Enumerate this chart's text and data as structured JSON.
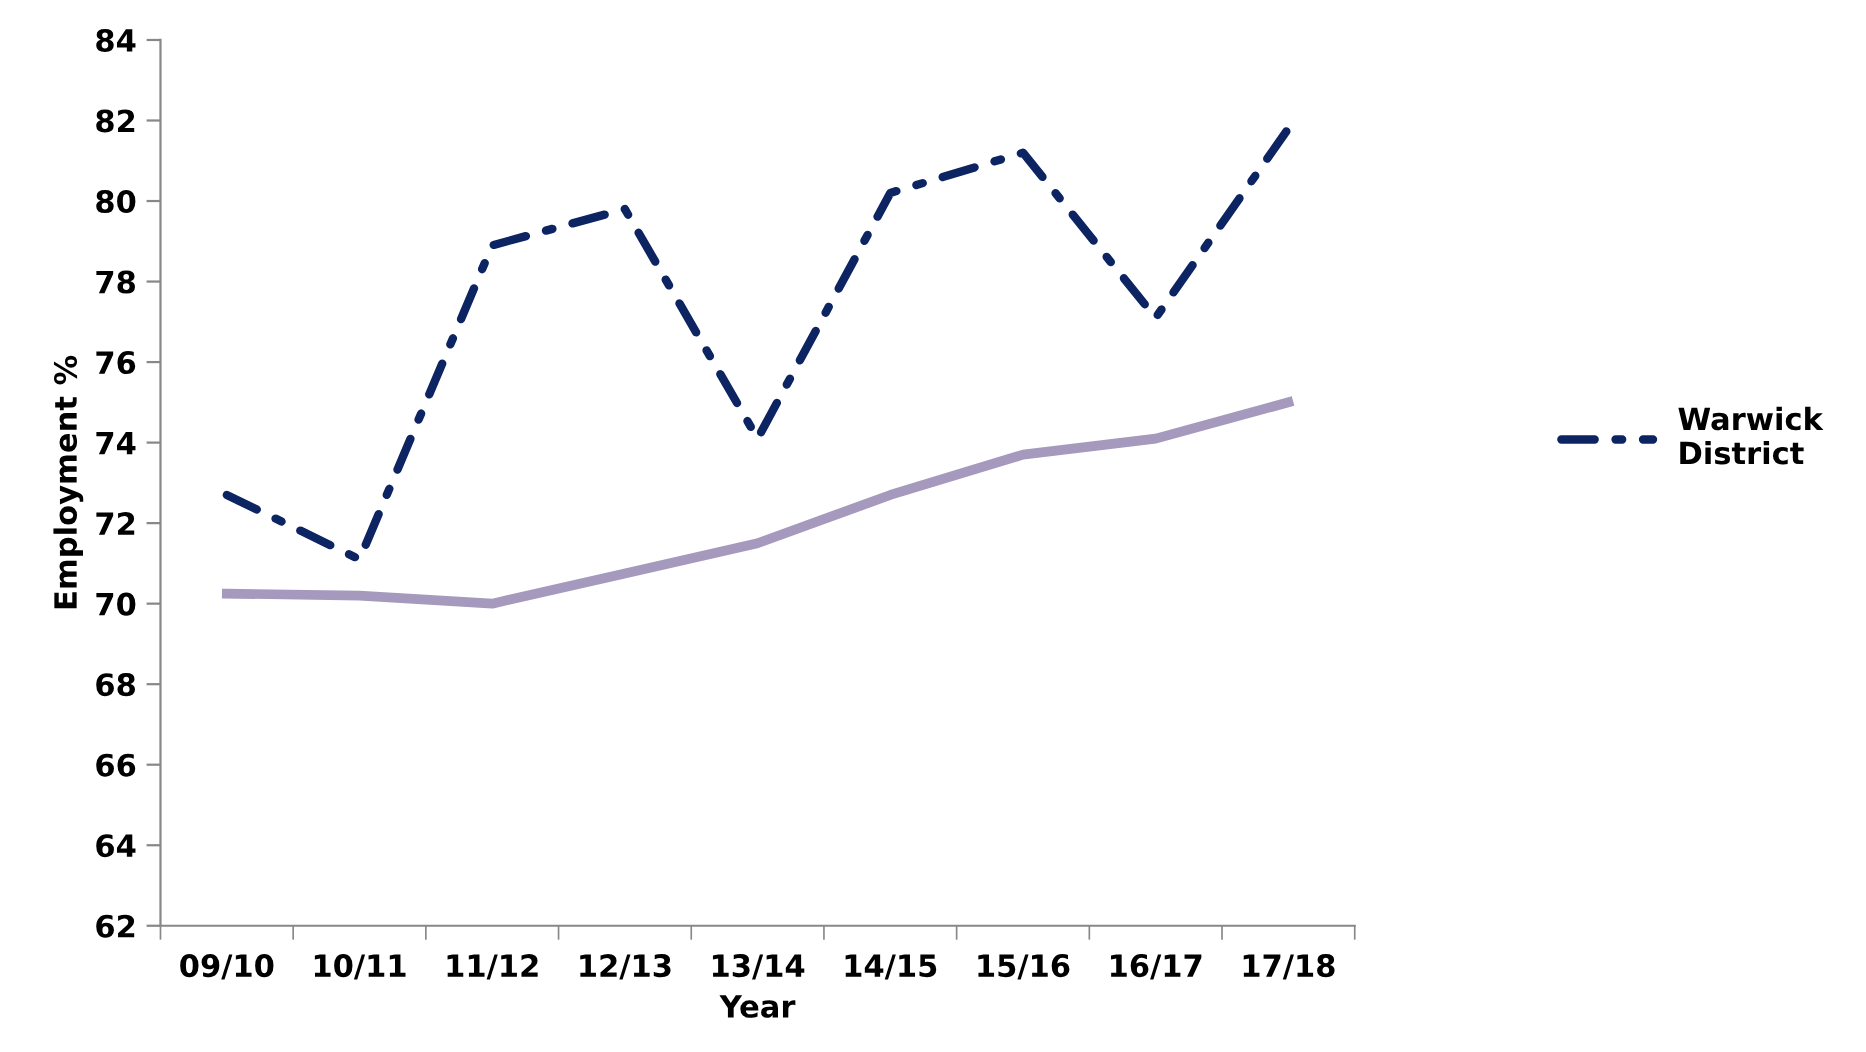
{
  "chart_data": {
    "type": "line",
    "xlabel": "Year",
    "ylabel": "Employment %",
    "categories": [
      "09/10",
      "10/11",
      "11/12",
      "12/13",
      "13/14",
      "14/15",
      "15/16",
      "16/17",
      "17/18"
    ],
    "series": [
      {
        "name": "Warwick District",
        "color": "#0d2463",
        "line_style": "dashdot",
        "values": [
          72.7,
          71.1,
          78.9,
          79.8,
          74.1,
          80.2,
          81.2,
          77.1,
          81.8
        ]
      },
      {
        "color": "#a599bd",
        "line_style": "solid",
        "values": [
          70.25,
          70.2,
          70.0,
          70.75,
          71.5,
          72.7,
          73.7,
          74.1,
          75.0
        ]
      }
    ],
    "ylim": [
      62,
      84
    ],
    "yticks": [
      62,
      64,
      66,
      68,
      70,
      72,
      74,
      76,
      78,
      80,
      82,
      84
    ],
    "grid": false,
    "legend": "right",
    "marker": "none"
  }
}
